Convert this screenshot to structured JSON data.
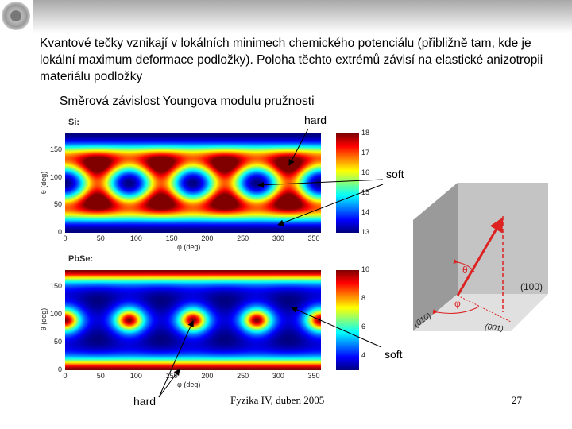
{
  "intro": "Kvantové tečky vznikají v lokálních minimech chemického potenciálu (přibližně tam, kde je lokální maximum deformace podložky). Poloha těchto extrémů závisí na elastické anizotropii materiálu podložky",
  "subtitle": "Směrová závislost Youngova modulu pružnosti",
  "annotations": {
    "hard_top": "hard",
    "soft_top": "soft",
    "soft_bottom": "soft",
    "hard_bottom": "hard"
  },
  "diagram": {
    "theta": "θ",
    "phi": "φ",
    "plane_100": "(100)",
    "plane_010": "(010)",
    "plane_001": "(001)"
  },
  "footer": "Fyzika IV, duben 2005",
  "page_number": "27",
  "chart_data": [
    {
      "type": "heatmap",
      "title": "Si:",
      "xlabel": "φ (deg)",
      "ylabel": "θ (deg)",
      "xlim": [
        0,
        360
      ],
      "ylim": [
        0,
        180
      ],
      "xticks": [
        "0",
        "50",
        "100",
        "150",
        "200",
        "250",
        "300",
        "350"
      ],
      "yticks": [
        "0",
        "50",
        "100",
        "150"
      ],
      "colorbar": {
        "range": [
          13,
          18
        ],
        "ticks": [
          "13",
          "14",
          "15",
          "16",
          "17",
          "18"
        ]
      },
      "E_100": 13,
      "E_111": 18.8,
      "colormap": "jet"
    },
    {
      "type": "heatmap",
      "title": "PbSe:",
      "xlabel": "φ (deg)",
      "ylabel": "θ (deg)",
      "xlim": [
        0,
        360
      ],
      "ylim": [
        0,
        180
      ],
      "xticks": [
        "0",
        "50",
        "100",
        "150",
        "200",
        "250",
        "300",
        "350"
      ],
      "yticks": [
        "0",
        "50",
        "100",
        "150"
      ],
      "colorbar": {
        "range": [
          3,
          10
        ],
        "ticks": [
          "4",
          "6",
          "8",
          "10"
        ]
      },
      "E_100": 10,
      "E_111": 3,
      "colormap": "jet"
    }
  ]
}
